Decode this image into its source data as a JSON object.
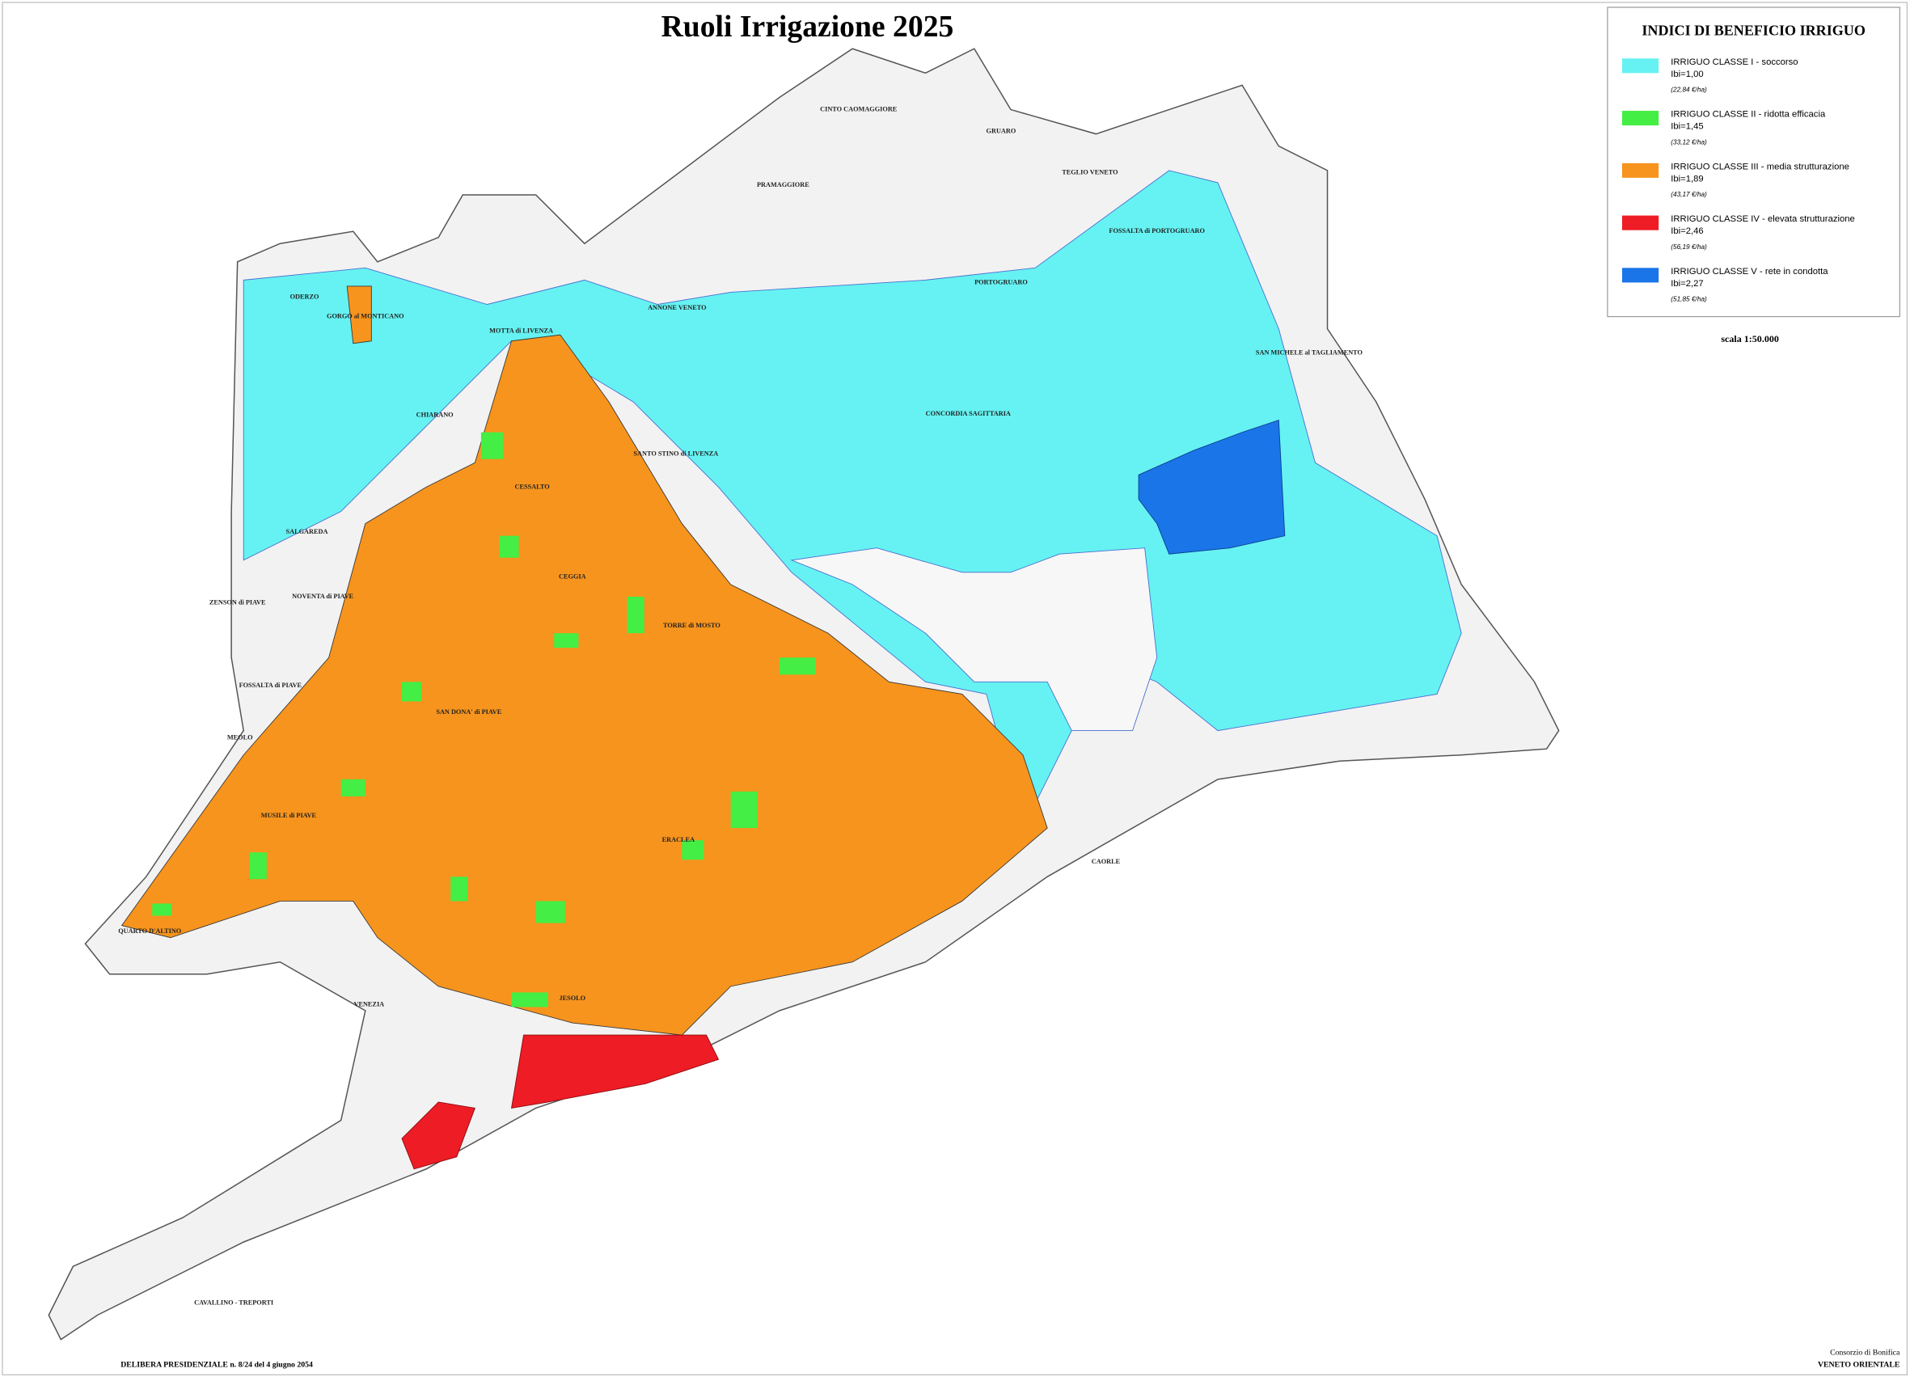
{
  "title": "Ruoli Irrigazione 2025",
  "legend": {
    "title": "INDICI DI BENEFICIO IRRIGUO",
    "items": [
      {
        "color": "#66f2f2",
        "label": "IRRIGUO CLASSE I - soccorso",
        "index": "Ibi=1,00",
        "rate": "(22,84 €/ha)"
      },
      {
        "color": "#44ee44",
        "label": "IRRIGUO CLASSE II - ridotta efficacia",
        "index": "Ibi=1,45",
        "rate": "(33,12 €/ha)"
      },
      {
        "color": "#f7941d",
        "label": "IRRIGUO CLASSE III - media strutturazione",
        "index": "Ibi=1,89",
        "rate": "(43,17 €/ha)"
      },
      {
        "color": "#ee1c25",
        "label": "IRRIGUO CLASSE IV - elevata strutturazione",
        "index": "Ibi=2,46",
        "rate": "(56,19 €/ha)"
      },
      {
        "color": "#1a75e8",
        "label": "IRRIGUO CLASSE V - rete in condotta",
        "index": "Ibi=2,27",
        "rate": "(51,85 €/ha)"
      }
    ]
  },
  "scale": "scala 1:50.000",
  "places": [
    "ODERZO",
    "GORGO al MONTICANO",
    "MOTTA di LIVENZA",
    "CHIARANO",
    "CESSALTO",
    "SALGAREDA",
    "ZENSON di PIAVE",
    "NOVENTA di PIAVE",
    "CEGGIA",
    "TORRE di MOSTO",
    "FOSSALTA di PIAVE",
    "SAN DONA' di PIAVE",
    "MEOLO",
    "MUSILE di PIAVE",
    "ERACLEA",
    "QUARTO D'ALTINO",
    "VENEZIA",
    "JESOLO",
    "CAVALLINO - TREPORTI",
    "CAORLE",
    "ANNONE VENETO",
    "SANTO STINO di LIVENZA",
    "PRAMAGGIORE",
    "CINTO CAOMAGGIORE",
    "GRUARO",
    "TEGLIO VENETO",
    "FOSSALTA di PORTOGRUARO",
    "PORTOGRUARO",
    "CONCORDIA SAGITTARIA",
    "SAN MICHELE al TAGLIAMENTO"
  ],
  "footer": {
    "decree": "DELIBERA PRESIDENZIALE n. 8/24 del 4 giugno 2054",
    "org_line1": "Consorzio di Bonifica",
    "org_line2": "VENETO ORIENTALE"
  }
}
